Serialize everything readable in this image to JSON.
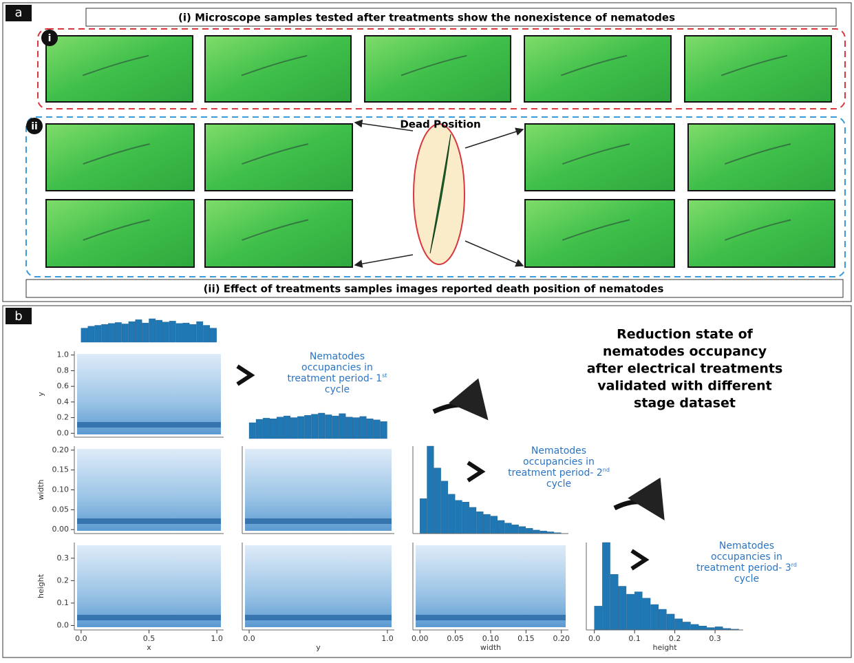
{
  "panel_a": {
    "label": "a",
    "title": "(i) Microscope samples tested after treatments show the nonexistence of nematodes",
    "caption": "(ii) Effect of treatments samples images reported death position of nematodes",
    "group_labels": [
      "i",
      "ii"
    ],
    "callout": "Dead Position"
  },
  "panel_b": {
    "label": "b",
    "heading": [
      "Reduction state of",
      "nematodes occupancy",
      "after electrical treatments",
      "validated with different",
      "stage dataset"
    ],
    "annotations": [
      {
        "lines": [
          "Nematodes",
          "occupancies in",
          "treatment period- 1",
          "cycle"
        ],
        "sup": "st"
      },
      {
        "lines": [
          "Nematodes",
          "occupancies in",
          "treatment period- 2",
          "cycle"
        ],
        "sup": "nd"
      },
      {
        "lines": [
          "Nematodes",
          "occupancies in",
          "treatment period- 3",
          "cycle"
        ],
        "sup": "rd"
      }
    ]
  },
  "chart_data": {
    "type": "pairplot",
    "color": "#1f77b4",
    "variables": [
      "x",
      "y",
      "width",
      "height"
    ],
    "axes": [
      {
        "lim": [
          -0.05,
          1.05
        ],
        "ticks": [
          {
            "value": 0,
            "label": "0.0"
          },
          {
            "value": 0.5,
            "label": "0.5"
          },
          {
            "value": 1,
            "label": "1.0"
          }
        ]
      },
      {
        "lim": [
          -0.05,
          1.05
        ],
        "ticks": [
          {
            "value": 0,
            "label": "0.0"
          },
          {
            "value": 0.2,
            "label": "0.2"
          },
          {
            "value": 0.4,
            "label": "0.4"
          },
          {
            "value": 0.6,
            "label": "0.6"
          },
          {
            "value": 0.8,
            "label": "0.8"
          },
          {
            "value": 1,
            "label": "1.0"
          }
        ]
      },
      {
        "lim": [
          -0.01,
          0.21
        ],
        "ticks": [
          {
            "value": 0,
            "label": "0.00"
          },
          {
            "value": 0.05,
            "label": "0.05"
          },
          {
            "value": 0.1,
            "label": "0.10"
          },
          {
            "value": 0.15,
            "label": "0.15"
          },
          {
            "value": 0.2,
            "label": "0.20"
          }
        ]
      },
      {
        "lim": [
          -0.02,
          0.37
        ],
        "ticks": [
          {
            "value": 0,
            "label": "0.0"
          },
          {
            "value": 0.1,
            "label": "0.1"
          },
          {
            "value": 0.2,
            "label": "0.2"
          },
          {
            "value": 0.3,
            "label": "0.3"
          }
        ]
      }
    ],
    "histograms": [
      {
        "bins": [
          0,
          0.05,
          0.1,
          0.15,
          0.2,
          0.25,
          0.3,
          0.35,
          0.4,
          0.45,
          0.5,
          0.55,
          0.6,
          0.65,
          0.7,
          0.75,
          0.8,
          0.85,
          0.9,
          0.95,
          1
        ],
        "counts": [
          30,
          34,
          36,
          38,
          40,
          42,
          39,
          44,
          48,
          41,
          50,
          47,
          43,
          45,
          40,
          41,
          38,
          44,
          36,
          30
        ]
      },
      {
        "bins": [
          0,
          0.05,
          0.1,
          0.15,
          0.2,
          0.25,
          0.3,
          0.35,
          0.4,
          0.45,
          0.5,
          0.55,
          0.6,
          0.65,
          0.7,
          0.75,
          0.8,
          0.85,
          0.9,
          0.95,
          1
        ],
        "counts": [
          28,
          34,
          36,
          35,
          38,
          40,
          37,
          39,
          41,
          43,
          45,
          42,
          40,
          44,
          38,
          37,
          39,
          35,
          33,
          30
        ]
      },
      {
        "bins": [
          0,
          0.01,
          0.02,
          0.03,
          0.04,
          0.05,
          0.06,
          0.07,
          0.08,
          0.09,
          0.1,
          0.11,
          0.12,
          0.13,
          0.14,
          0.15,
          0.16,
          0.17,
          0.18,
          0.19,
          0.2
        ],
        "counts": [
          40,
          100,
          75,
          60,
          45,
          38,
          36,
          30,
          25,
          22,
          20,
          15,
          12,
          10,
          8,
          6,
          4,
          3,
          2,
          1
        ]
      },
      {
        "bins": [
          0,
          0.02,
          0.04,
          0.06,
          0.08,
          0.1,
          0.12,
          0.14,
          0.16,
          0.18,
          0.2,
          0.22,
          0.24,
          0.26,
          0.28,
          0.3,
          0.32,
          0.34,
          0.36
        ],
        "counts": [
          30,
          110,
          70,
          55,
          45,
          48,
          40,
          32,
          26,
          20,
          14,
          10,
          7,
          5,
          3,
          4,
          2,
          1
        ]
      }
    ]
  }
}
